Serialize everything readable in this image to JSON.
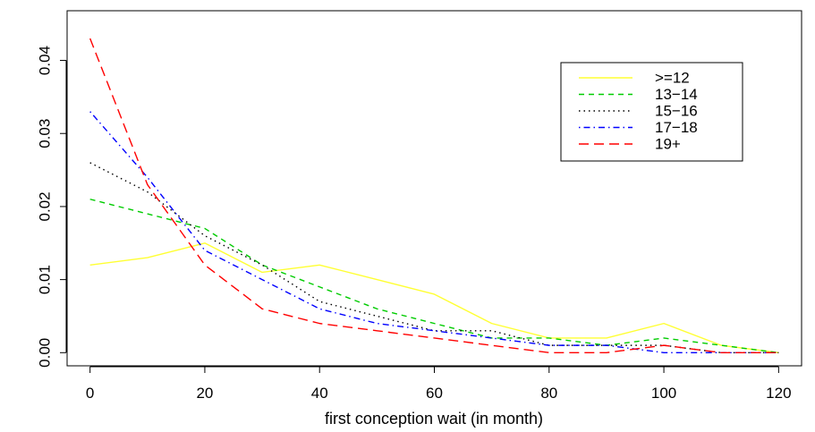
{
  "chart_data": {
    "type": "line",
    "title": "",
    "xlabel": "first conception wait (in month)",
    "ylabel": "",
    "xlim": [
      -4,
      124
    ],
    "ylim": [
      -0.0018,
      0.0468
    ],
    "xticks": [
      0,
      20,
      40,
      60,
      80,
      100,
      120
    ],
    "xtick_labels": [
      "0",
      "20",
      "40",
      "60",
      "80",
      "100",
      "120"
    ],
    "yticks": [
      0.0,
      0.01,
      0.02,
      0.03,
      0.04
    ],
    "ytick_labels": [
      "0.00",
      "0.01",
      "0.02",
      "0.03",
      "0.04"
    ],
    "grid": false,
    "legend_position": "top-right",
    "x": [
      0,
      10,
      20,
      30,
      40,
      50,
      60,
      70,
      80,
      90,
      100,
      110,
      120
    ],
    "series": [
      {
        "name": ">=12",
        "color": "#ffff33",
        "dash": "solid",
        "values": [
          0.012,
          0.013,
          0.015,
          0.011,
          0.012,
          0.01,
          0.008,
          0.004,
          0.002,
          0.002,
          0.004,
          0.001,
          0.0
        ]
      },
      {
        "name": "13−14",
        "color": "#00cc00",
        "dash": "dashed",
        "values": [
          0.021,
          0.019,
          0.017,
          0.012,
          0.009,
          0.006,
          0.004,
          0.002,
          0.002,
          0.001,
          0.002,
          0.001,
          0.0
        ]
      },
      {
        "name": "15−16",
        "color": "#000000",
        "dash": "dotted",
        "values": [
          0.026,
          0.022,
          0.016,
          0.012,
          0.007,
          0.005,
          0.003,
          0.003,
          0.001,
          0.001,
          0.001,
          0.0,
          0.0
        ]
      },
      {
        "name": "17−18",
        "color": "#0000ff",
        "dash": "dotdash",
        "values": [
          0.033,
          0.024,
          0.014,
          0.01,
          0.006,
          0.004,
          0.003,
          0.002,
          0.001,
          0.001,
          0.0,
          0.0,
          0.0
        ]
      },
      {
        "name": "19+",
        "color": "#ff0000",
        "dash": "longdash",
        "values": [
          0.043,
          0.023,
          0.012,
          0.006,
          0.004,
          0.003,
          0.002,
          0.001,
          0.0,
          0.0,
          0.001,
          0.0,
          0.0
        ]
      }
    ]
  }
}
